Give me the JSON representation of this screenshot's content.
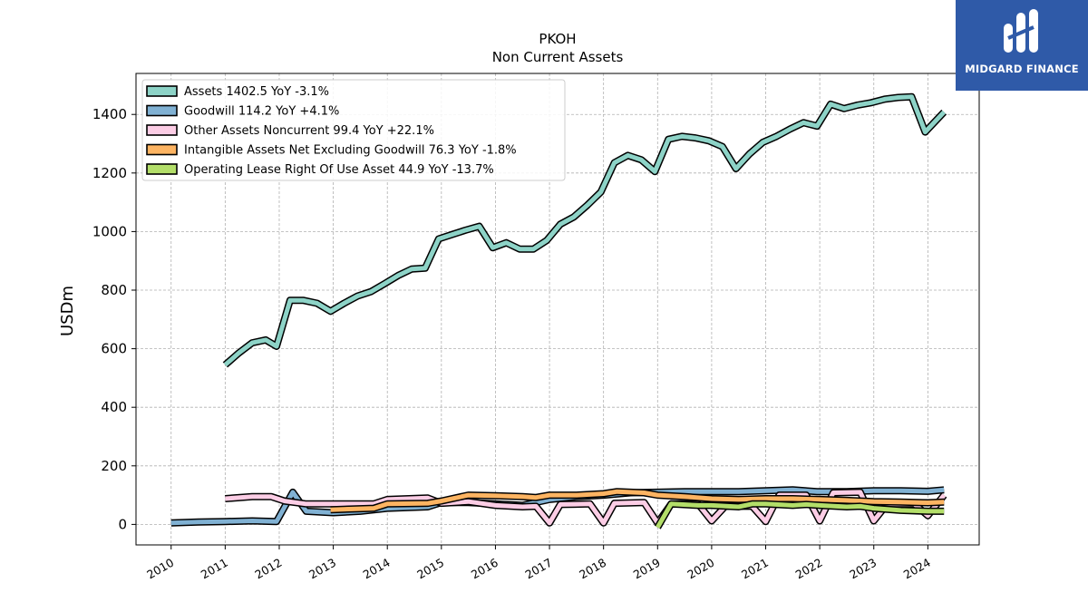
{
  "logo": {
    "name": "MIDGARD FINANCE",
    "brand_color": "#2f5aa8"
  },
  "chart_data": {
    "type": "line",
    "title": "PKOH",
    "subtitle": "Non Current  Assets",
    "ylabel": "USDm",
    "xlabel": "",
    "ylim": [
      -70,
      1540
    ],
    "xlim": [
      2009.35,
      2024.95
    ],
    "yticks": [
      0,
      200,
      400,
      600,
      800,
      1000,
      1200,
      1400
    ],
    "xticks": [
      "2010",
      "2011",
      "2012",
      "2013",
      "2014",
      "2015",
      "2016",
      "2017",
      "2018",
      "2019",
      "2020",
      "2021",
      "2022",
      "2023",
      "2024"
    ],
    "grid": true,
    "legend_position": "top-left",
    "series": [
      {
        "name": "Assets",
        "legend_label": "Assets  1402.5 YoY -3.1%",
        "color": "#8dd3c7",
        "points": [
          [
            2011.0,
            545
          ],
          [
            2011.25,
            585
          ],
          [
            2011.5,
            620
          ],
          [
            2011.75,
            630
          ],
          [
            2011.95,
            608
          ],
          [
            2012.2,
            765
          ],
          [
            2012.45,
            765
          ],
          [
            2012.7,
            755
          ],
          [
            2012.95,
            728
          ],
          [
            2013.2,
            755
          ],
          [
            2013.45,
            780
          ],
          [
            2013.7,
            795
          ],
          [
            2013.95,
            822
          ],
          [
            2014.2,
            850
          ],
          [
            2014.45,
            872
          ],
          [
            2014.7,
            875
          ],
          [
            2014.95,
            975
          ],
          [
            2015.2,
            990
          ],
          [
            2015.45,
            1005
          ],
          [
            2015.7,
            1018
          ],
          [
            2015.95,
            945
          ],
          [
            2016.2,
            962
          ],
          [
            2016.45,
            940
          ],
          [
            2016.7,
            940
          ],
          [
            2016.95,
            970
          ],
          [
            2017.2,
            1025
          ],
          [
            2017.45,
            1050
          ],
          [
            2017.7,
            1090
          ],
          [
            2017.95,
            1135
          ],
          [
            2018.2,
            1235
          ],
          [
            2018.45,
            1260
          ],
          [
            2018.7,
            1245
          ],
          [
            2018.95,
            1205
          ],
          [
            2019.2,
            1315
          ],
          [
            2019.45,
            1325
          ],
          [
            2019.7,
            1320
          ],
          [
            2019.95,
            1310
          ],
          [
            2020.2,
            1290
          ],
          [
            2020.45,
            1215
          ],
          [
            2020.7,
            1265
          ],
          [
            2020.95,
            1305
          ],
          [
            2021.2,
            1325
          ],
          [
            2021.45,
            1350
          ],
          [
            2021.7,
            1372
          ],
          [
            2021.95,
            1360
          ],
          [
            2022.2,
            1435
          ],
          [
            2022.45,
            1420
          ],
          [
            2022.7,
            1432
          ],
          [
            2022.95,
            1440
          ],
          [
            2023.2,
            1452
          ],
          [
            2023.45,
            1458
          ],
          [
            2023.7,
            1460
          ],
          [
            2023.95,
            1340
          ],
          [
            2024.3,
            1408
          ]
        ]
      },
      {
        "name": "Goodwill",
        "legend_label": "Goodwill  114.2 YoY +4.1%",
        "color": "#80b1d3",
        "points": [
          [
            2010.0,
            5
          ],
          [
            2010.5,
            8
          ],
          [
            2011.0,
            10
          ],
          [
            2011.5,
            12
          ],
          [
            2011.95,
            10
          ],
          [
            2012.25,
            110
          ],
          [
            2012.5,
            45
          ],
          [
            2013.0,
            40
          ],
          [
            2013.5,
            45
          ],
          [
            2014.0,
            55
          ],
          [
            2014.75,
            60
          ],
          [
            2015.0,
            75
          ],
          [
            2015.5,
            75
          ],
          [
            2016.0,
            70
          ],
          [
            2016.5,
            65
          ],
          [
            2017.0,
            85
          ],
          [
            2017.5,
            95
          ],
          [
            2018.0,
            100
          ],
          [
            2018.5,
            108
          ],
          [
            2019.0,
            110
          ],
          [
            2019.5,
            112
          ],
          [
            2020.0,
            112
          ],
          [
            2020.5,
            112
          ],
          [
            2021.0,
            115
          ],
          [
            2021.5,
            118
          ],
          [
            2021.95,
            112
          ],
          [
            2022.5,
            112
          ],
          [
            2023.0,
            115
          ],
          [
            2023.5,
            115
          ],
          [
            2024.0,
            113
          ],
          [
            2024.3,
            118
          ]
        ]
      },
      {
        "name": "Other Assets Noncurrent",
        "legend_label": "Other Assets Noncurrent  99.4 YoY +22.1%",
        "color": "#fccde5",
        "points": [
          [
            2011.0,
            88
          ],
          [
            2011.5,
            95
          ],
          [
            2011.85,
            95
          ],
          [
            2012.1,
            80
          ],
          [
            2012.5,
            70
          ],
          [
            2013.0,
            70
          ],
          [
            2013.75,
            70
          ],
          [
            2014.0,
            85
          ],
          [
            2014.75,
            90
          ],
          [
            2015.0,
            72
          ],
          [
            2015.5,
            78
          ],
          [
            2016.0,
            65
          ],
          [
            2016.5,
            60
          ],
          [
            2016.75,
            62
          ],
          [
            2017.0,
            5
          ],
          [
            2017.2,
            68
          ],
          [
            2017.75,
            70
          ],
          [
            2018.0,
            5
          ],
          [
            2018.2,
            72
          ],
          [
            2018.75,
            75
          ],
          [
            2019.0,
            5
          ],
          [
            2019.25,
            70
          ],
          [
            2019.75,
            70
          ],
          [
            2020.0,
            12
          ],
          [
            2020.25,
            62
          ],
          [
            2020.75,
            62
          ],
          [
            2021.0,
            10
          ],
          [
            2021.25,
            100
          ],
          [
            2021.75,
            100
          ],
          [
            2022.0,
            12
          ],
          [
            2022.25,
            108
          ],
          [
            2022.75,
            110
          ],
          [
            2023.0,
            12
          ],
          [
            2023.25,
            70
          ],
          [
            2023.75,
            70
          ],
          [
            2024.0,
            30
          ],
          [
            2024.3,
            100
          ]
        ]
      },
      {
        "name": "Intangible Assets Net Excluding Goodwill",
        "legend_label": "Intangible Assets Net Excluding Goodwill  76.3 YoY -1.8%",
        "color": "#fdb462",
        "points": [
          [
            2012.95,
            50
          ],
          [
            2013.75,
            55
          ],
          [
            2014.0,
            70
          ],
          [
            2014.75,
            72
          ],
          [
            2015.0,
            80
          ],
          [
            2015.5,
            100
          ],
          [
            2016.0,
            98
          ],
          [
            2016.5,
            95
          ],
          [
            2016.75,
            92
          ],
          [
            2017.0,
            100
          ],
          [
            2017.5,
            100
          ],
          [
            2018.0,
            105
          ],
          [
            2018.25,
            112
          ],
          [
            2018.75,
            108
          ],
          [
            2019.0,
            100
          ],
          [
            2019.5,
            95
          ],
          [
            2020.0,
            88
          ],
          [
            2020.5,
            85
          ],
          [
            2021.0,
            88
          ],
          [
            2021.5,
            88
          ],
          [
            2022.0,
            85
          ],
          [
            2022.5,
            82
          ],
          [
            2023.0,
            78
          ],
          [
            2023.5,
            76
          ],
          [
            2024.0,
            74
          ],
          [
            2024.3,
            76
          ]
        ]
      },
      {
        "name": "Operating Lease Right Of Use Asset",
        "legend_label": "Operating Lease Right Of Use Asset  44.9 YoY -13.7%",
        "color": "#b3de69",
        "points": [
          [
            2019.0,
            -10
          ],
          [
            2019.25,
            70
          ],
          [
            2019.75,
            65
          ],
          [
            2020.0,
            65
          ],
          [
            2020.5,
            60
          ],
          [
            2020.75,
            70
          ],
          [
            2021.0,
            70
          ],
          [
            2021.5,
            65
          ],
          [
            2021.75,
            68
          ],
          [
            2022.0,
            65
          ],
          [
            2022.5,
            60
          ],
          [
            2022.75,
            62
          ],
          [
            2023.0,
            55
          ],
          [
            2023.5,
            48
          ],
          [
            2024.0,
            45
          ],
          [
            2024.3,
            45
          ]
        ]
      }
    ]
  }
}
